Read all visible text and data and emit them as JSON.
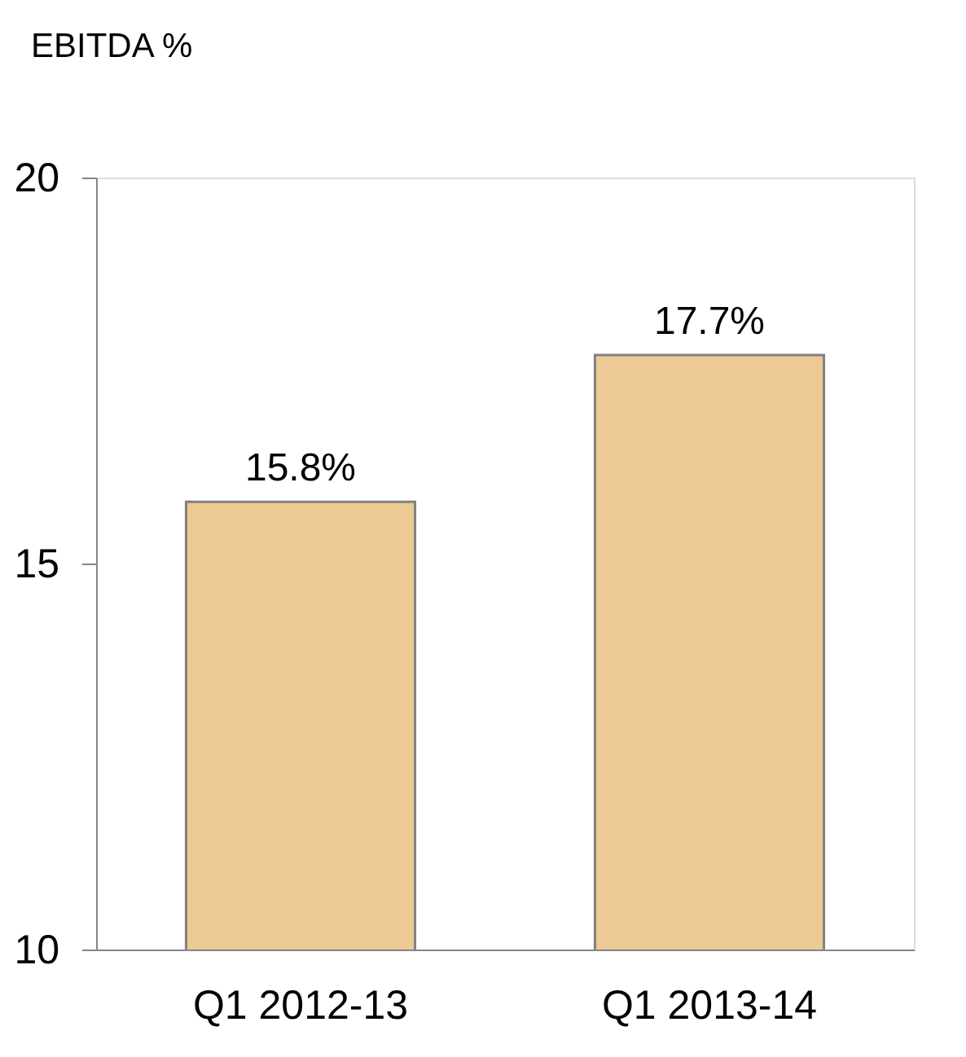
{
  "chart_data": {
    "type": "bar",
    "title": "EBITDA %",
    "categories": [
      "Q1 2012-13",
      "Q1 2013-14"
    ],
    "values": [
      15.8,
      17.7
    ],
    "value_labels": [
      "15.8%",
      "17.7%"
    ],
    "color": "#edc995",
    "ylim": [
      10,
      20
    ],
    "yticks": [
      10,
      15,
      20
    ],
    "grid": false
  }
}
